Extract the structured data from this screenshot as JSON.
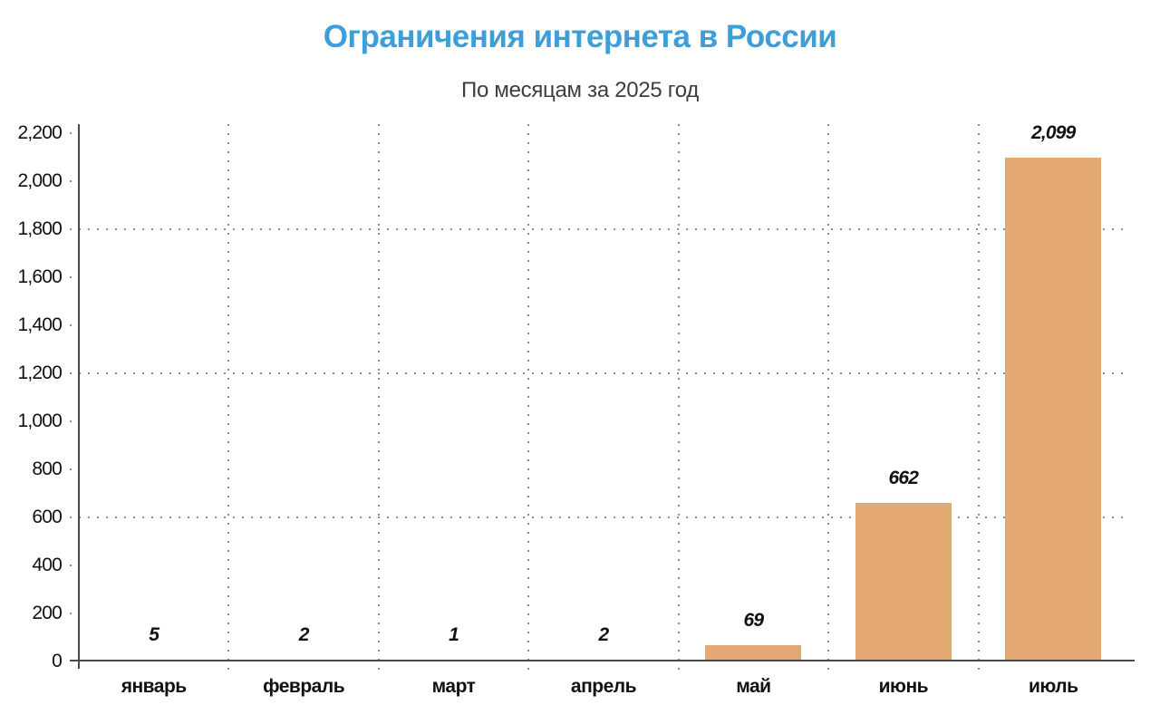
{
  "title": "Ограничения интернета в России",
  "subtitle": "По месяцам за 2025 год",
  "chart_data": {
    "type": "bar",
    "title": "Ограничения интернета в России",
    "subtitle": "По месяцам за 2025 год",
    "categories": [
      "январь",
      "февраль",
      "март",
      "апрель",
      "май",
      "июнь",
      "июль"
    ],
    "values": [
      5,
      2,
      1,
      2,
      69,
      662,
      2099
    ],
    "value_labels": [
      "5",
      "2",
      "1",
      "2",
      "69",
      "662",
      "2,099"
    ],
    "xlabel": "",
    "ylabel": "",
    "ylim": [
      0,
      2200
    ],
    "ytick_step": 200,
    "ytick_labels": [
      "0",
      "200",
      "400",
      "600",
      "800",
      "1,000",
      "1,200",
      "1,400",
      "1,600",
      "1,800",
      "2,000",
      "2,200"
    ],
    "major_gridlines_y": [
      600,
      1200,
      1800
    ],
    "grid_style": "dotted",
    "legend": "none",
    "colors": {
      "bar": "#e4a873",
      "title": "#3e9fd8",
      "subtitle_text": "#3d3d3d",
      "axis": "#4a4a4a",
      "grid": "#8a8a8a",
      "label_text": "#111111"
    }
  }
}
